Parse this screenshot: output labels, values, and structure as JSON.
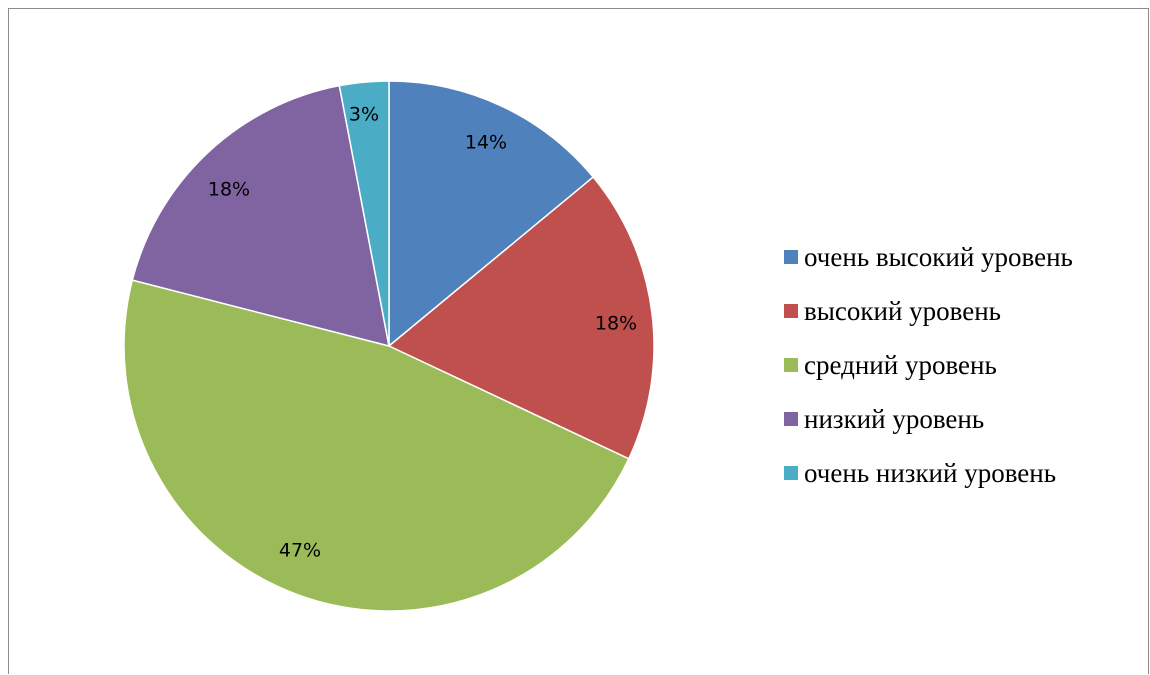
{
  "chart_data": {
    "type": "pie",
    "slices": [
      {
        "label": "очень высокий уровень",
        "value": 14,
        "value_label": "14%",
        "color": "#4f81bd"
      },
      {
        "label": "высокий уровень",
        "value": 18,
        "value_label": "18%",
        "color": "#c0504d"
      },
      {
        "label": "средний уровень",
        "value": 47,
        "value_label": "47%",
        "color": "#9bbb59"
      },
      {
        "label": "низкий уровень",
        "value": 18,
        "value_label": "18%",
        "color": "#8064a2"
      },
      {
        "label": "очень низкий уровень",
        "value": 3,
        "value_label": "3%",
        "color": "#4bacc6"
      }
    ],
    "legend_position": "right",
    "start_angle": "top",
    "direction": "clockwise"
  }
}
